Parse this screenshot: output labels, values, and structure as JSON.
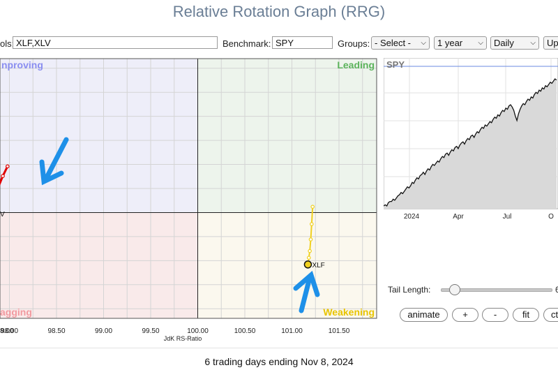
{
  "title": "Relative Rotation Graph (RRG)",
  "controls": {
    "symbols_label": "ols:",
    "symbols_value": "XLF,XLV",
    "benchmark_label": "Benchmark:",
    "benchmark_value": "SPY",
    "groups_label": "Groups:",
    "groups_value": "- Select -",
    "period_value": "1 year",
    "interval_value": "Daily",
    "update_label": "Up"
  },
  "chart_data": [
    {
      "type": "scatter",
      "xlabel": "JdK RS-Ratio",
      "xlim": [
        97.9,
        101.9
      ],
      "ylim": [
        98.9,
        101.6
      ],
      "x_ticks": [
        "8.00",
        "98.00",
        "98.50",
        "99.00",
        "99.50",
        "100.00",
        "100.50",
        "101.00",
        "101.50"
      ],
      "quadrants": {
        "improving": "nproving",
        "leading": "Leading",
        "weakening": "Weakening",
        "lagging": "agging"
      },
      "colors": {
        "XLV": "#e00000",
        "XLF": "#f0d020"
      },
      "series": [
        {
          "name": "XLV",
          "points": [
            [
              97.77,
              99.99
            ],
            [
              97.81,
              100.08
            ],
            [
              97.84,
              100.16
            ],
            [
              97.88,
              100.26
            ],
            [
              97.93,
              100.38
            ],
            [
              97.98,
              100.48
            ]
          ]
        },
        {
          "name": "XLF",
          "points": [
            [
              101.17,
              99.46
            ],
            [
              101.18,
              99.53
            ],
            [
              101.19,
              99.6
            ],
            [
              101.2,
              99.72
            ],
            [
              101.21,
              99.88
            ],
            [
              101.22,
              100.06
            ]
          ]
        }
      ]
    },
    {
      "type": "area",
      "title": "SPY",
      "x_ticks": [
        "2024",
        "Apr",
        "Jul",
        "O"
      ],
      "values": [
        100,
        101,
        100,
        103,
        104,
        104,
        106,
        105,
        107,
        109,
        110,
        112,
        111,
        113,
        115,
        117,
        116,
        118,
        121,
        120,
        123,
        125,
        124,
        127,
        128,
        130,
        128,
        131,
        133,
        132,
        135,
        137,
        136,
        138,
        140,
        139,
        142,
        144,
        143,
        146,
        147,
        145,
        148,
        150,
        149,
        152,
        153,
        151,
        154,
        156,
        157,
        155,
        158,
        160,
        159,
        162,
        163,
        161,
        164,
        166,
        165,
        168,
        170,
        169,
        172,
        171,
        173,
        175,
        174,
        177,
        179,
        178,
        181,
        180,
        183,
        185,
        184,
        187,
        186,
        189,
        190,
        188,
        185,
        180,
        176,
        182,
        186,
        189,
        191,
        190,
        193,
        195,
        194,
        197,
        196,
        199,
        201,
        200,
        203,
        202,
        205,
        204,
        207,
        206,
        208,
        210,
        209,
        211,
        213,
        212
      ]
    }
  ],
  "tail": {
    "label": "Tail Length:",
    "value": "6",
    "slider_fraction": 0.12
  },
  "buttons": {
    "animate": "animate",
    "plus": "+",
    "minus": "-",
    "fit": "fit",
    "ctrl": "ct"
  },
  "footer": "6 trading days ending Nov 8, 2024"
}
